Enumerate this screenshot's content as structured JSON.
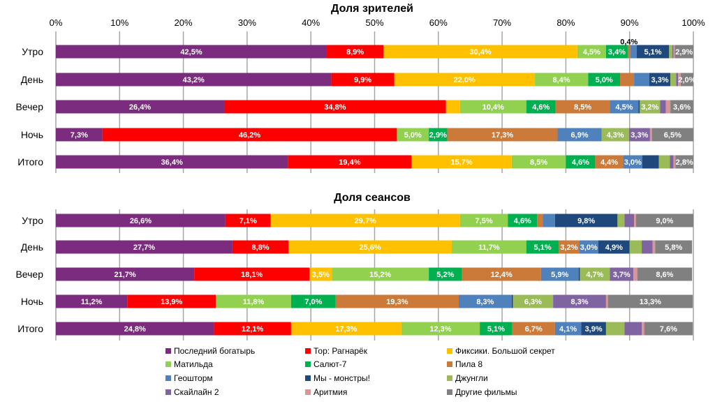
{
  "chart_data": [
    {
      "type": "bar",
      "orientation": "horizontal",
      "stacked": "percent",
      "title": "Доля зрителей",
      "x_ticks": [
        "0%",
        "10%",
        "20%",
        "30%",
        "40%",
        "50%",
        "60%",
        "70%",
        "80%",
        "90%",
        "100%"
      ],
      "xlim": [
        0,
        100
      ],
      "grid": true,
      "categories": [
        "Утро",
        "День",
        "Вечер",
        "Ночь",
        "Итого"
      ],
      "rows": [
        {
          "values": [
            42.5,
            8.9,
            30.4,
            4.5,
            3.4,
            0.4,
            1.0,
            5.1,
            0.5,
            0.2,
            0.2,
            2.9
          ],
          "labeled": [
            1,
            1,
            1,
            1,
            1,
            1,
            0,
            1,
            0,
            0,
            0,
            1
          ]
        },
        {
          "values": [
            43.2,
            9.9,
            22.0,
            8.4,
            5.0,
            2.2,
            2.4,
            3.3,
            0.9,
            0.3,
            0.4,
            2.0
          ],
          "labeled": [
            1,
            1,
            1,
            1,
            1,
            0,
            0,
            1,
            0,
            0,
            0,
            1
          ]
        },
        {
          "values": [
            26.4,
            34.8,
            2.2,
            10.4,
            4.6,
            8.5,
            4.5,
            0.2,
            3.2,
            0.9,
            0.7,
            3.6
          ],
          "labeled": [
            1,
            1,
            0,
            1,
            1,
            1,
            1,
            0,
            1,
            0,
            0,
            1
          ]
        },
        {
          "values": [
            7.3,
            46.2,
            0,
            5.0,
            2.9,
            17.3,
            6.9,
            0,
            4.3,
            3.3,
            0.3,
            6.5
          ],
          "labeled": [
            1,
            1,
            0,
            1,
            1,
            1,
            1,
            0,
            1,
            1,
            0,
            1
          ]
        },
        {
          "values": [
            36.4,
            19.4,
            15.7,
            8.5,
            4.6,
            4.4,
            3.0,
            2.6,
            1.7,
            0.6,
            0.3,
            2.8
          ],
          "labeled": [
            1,
            1,
            1,
            1,
            1,
            1,
            1,
            0,
            0,
            0,
            0,
            1
          ]
        }
      ]
    },
    {
      "type": "bar",
      "orientation": "horizontal",
      "stacked": "percent",
      "title": "Доля сеансов",
      "xlim": [
        0,
        100
      ],
      "grid": true,
      "categories": [
        "Утро",
        "День",
        "Вечер",
        "Ночь",
        "Итого"
      ],
      "rows": [
        {
          "values": [
            26.6,
            7.1,
            29.7,
            7.5,
            4.6,
            0.9,
            1.9,
            9.8,
            1.1,
            1.5,
            0.3,
            9.0
          ],
          "labeled": [
            1,
            1,
            1,
            1,
            1,
            0,
            0,
            1,
            0,
            0,
            0,
            1
          ]
        },
        {
          "values": [
            27.7,
            8.8,
            25.6,
            11.7,
            5.1,
            3.2,
            3.0,
            4.9,
            1.9,
            1.7,
            0.4,
            5.8
          ],
          "labeled": [
            1,
            1,
            1,
            1,
            1,
            1,
            1,
            1,
            0,
            0,
            0,
            1
          ]
        },
        {
          "values": [
            21.7,
            18.1,
            3.5,
            15.2,
            5.2,
            12.4,
            5.9,
            0.2,
            4.7,
            3.7,
            0.6,
            8.6
          ],
          "labeled": [
            1,
            1,
            1,
            1,
            1,
            1,
            1,
            0,
            1,
            1,
            0,
            1
          ]
        },
        {
          "values": [
            11.2,
            13.9,
            0,
            11.8,
            7.0,
            19.3,
            8.3,
            0.2,
            6.3,
            8.3,
            0.3,
            13.3
          ],
          "labeled": [
            1,
            1,
            0,
            1,
            1,
            1,
            1,
            0,
            1,
            1,
            0,
            1
          ]
        },
        {
          "values": [
            24.8,
            12.1,
            17.3,
            12.3,
            5.1,
            6.7,
            4.1,
            3.9,
            2.9,
            2.7,
            0.4,
            7.6
          ],
          "labeled": [
            1,
            1,
            1,
            1,
            1,
            1,
            1,
            1,
            0,
            0,
            0,
            1
          ]
        }
      ]
    }
  ],
  "series": [
    {
      "name": "Последний богатырь",
      "color": "#7B2C7E"
    },
    {
      "name": "Тор: Рагнарёк",
      "color": "#FF0000"
    },
    {
      "name": "Фиксики. Большой секрет",
      "color": "#FFC000"
    },
    {
      "name": "Матильда",
      "color": "#92D050"
    },
    {
      "name": "Салют-7",
      "color": "#00B050"
    },
    {
      "name": "Пила 8",
      "color": "#CC7A3A"
    },
    {
      "name": "Геошторм",
      "color": "#4F81BD"
    },
    {
      "name": "Мы - монстры!",
      "color": "#1F497D"
    },
    {
      "name": "Джунгли",
      "color": "#9BBB59"
    },
    {
      "name": "Скайлайн 2",
      "color": "#8064A2"
    },
    {
      "name": "Аритмия",
      "color": "#D99694"
    },
    {
      "name": "Другие фильмы",
      "color": "#808080"
    }
  ],
  "legend": {
    "position": "bottom",
    "columns": 3
  }
}
